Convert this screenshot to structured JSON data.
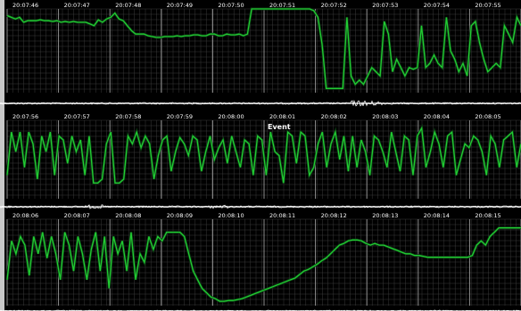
{
  "chart_data": {
    "type": "line",
    "title": "",
    "xlabel": "",
    "ylabel": "",
    "grid": true,
    "colors": {
      "background": "#000000",
      "grid": "#6a6a6a",
      "trace": "#22cc33",
      "trace_outline": "#0b3a12",
      "noise": "#ffffff",
      "label": "#ffffff"
    },
    "annotations": [
      {
        "text": "Event",
        "strip": 1,
        "time": "20:08:01"
      }
    ],
    "strips": [
      {
        "time_labels": [
          "20:07:46",
          "20:07:47",
          "20:07:48",
          "20:07:49",
          "20:07:50",
          "20:07:51",
          "20:07:52",
          "20:07:53",
          "20:07:54",
          "20:07:55"
        ],
        "series": [
          {
            "values": [
              92,
              90,
              88,
              90,
              84,
              86,
              86,
              86,
              87,
              86,
              86,
              85,
              86,
              84,
              85,
              84,
              85,
              84,
              84,
              84,
              82,
              80,
              87,
              84,
              88,
              90,
              95,
              88,
              86,
              80,
              74,
              70,
              70,
              70,
              68,
              67,
              66,
              66,
              67,
              67,
              67,
              68,
              67,
              68,
              68,
              69,
              69,
              68,
              68,
              70,
              70,
              68,
              68,
              70,
              69,
              69,
              70,
              68,
              70,
              100,
              100,
              100,
              100,
              100,
              100,
              100,
              100,
              100,
              100,
              100,
              100,
              100,
              100,
              100,
              98,
              90,
              58,
              5,
              5,
              5,
              5,
              5,
              90,
              20,
              10,
              15,
              10,
              20,
              30,
              25,
              20,
              85,
              70,
              25,
              40,
              30,
              20,
              30,
              28,
              30,
              80,
              30,
              35,
              45,
              35,
              30,
              90,
              50,
              40,
              25,
              35,
              20,
              80,
              85,
              60,
              40,
              25,
              30,
              35,
              30,
              80,
              70,
              60,
              90,
              80
            ]
          }
        ],
        "noise_level": 0.35,
        "noise_bursts": [
          {
            "at": 0.69,
            "amp": 3.0
          },
          {
            "at": 0.72,
            "amp": 2.5
          }
        ]
      },
      {
        "time_labels": [
          "20:07:56",
          "20:07:57",
          "20:07:58",
          "20:07:59",
          "20:08:00",
          "20:08:01",
          "20:08:02",
          "20:08:03",
          "20:08:04",
          "20:08:05"
        ],
        "series": [
          {
            "values": [
              30,
              85,
              60,
              85,
              40,
              85,
              70,
              25,
              80,
              60,
              85,
              30,
              80,
              75,
              45,
              80,
              60,
              75,
              30,
              80,
              20,
              20,
              25,
              70,
              85,
              20,
              20,
              25,
              80,
              70,
              85,
              65,
              80,
              70,
              25,
              55,
              75,
              80,
              35,
              60,
              78,
              70,
              55,
              80,
              75,
              35,
              60,
              80,
              50,
              65,
              75,
              45,
              80,
              60,
              40,
              75,
              70,
              30,
              80,
              75,
              30,
              85,
              60,
              55,
              20,
              85,
              80,
              45,
              85,
              80,
              30,
              40,
              70,
              85,
              40,
              70,
              85,
              50,
              80,
              35,
              80,
              40,
              75,
              60,
              30,
              80,
              75,
              60,
              40,
              85,
              60,
              35,
              80,
              75,
              30,
              80,
              90,
              40,
              60,
              85,
              70,
              40,
              80,
              85,
              30,
              50,
              70,
              65,
              80,
              75,
              60,
              30,
              80,
              70,
              40,
              75,
              80,
              85,
              40,
              70
            ]
          }
        ],
        "noise_level": 0.35,
        "noise_bursts": [
          {
            "at": 0.18,
            "amp": 2.0
          },
          {
            "at": 0.42,
            "amp": 1.8
          }
        ]
      },
      {
        "time_labels": [
          "20:08:06",
          "20:08:07",
          "20:08:08",
          "20:08:09",
          "20:08:10",
          "20:08:11",
          "20:08:12",
          "20:08:13",
          "20:08:14",
          "20:08:15"
        ],
        "series": [
          {
            "values": [
              30,
              75,
              60,
              80,
              70,
              35,
              80,
              60,
              85,
              55,
              80,
              60,
              30,
              85,
              70,
              40,
              80,
              60,
              30,
              65,
              85,
              40,
              80,
              20,
              80,
              60,
              75,
              40,
              85,
              30,
              60,
              50,
              80,
              65,
              80,
              75,
              85,
              85,
              85,
              85,
              80,
              60,
              40,
              30,
              20,
              15,
              10,
              8,
              5,
              5,
              6,
              6,
              7,
              8,
              10,
              12,
              14,
              16,
              18,
              20,
              22,
              24,
              26,
              28,
              30,
              32,
              36,
              40,
              42,
              45,
              48,
              52,
              55,
              60,
              65,
              70,
              72,
              75,
              76,
              76,
              75,
              72,
              70,
              72,
              70,
              70,
              68,
              66,
              64,
              62,
              60,
              60,
              58,
              58,
              57,
              56,
              56,
              56,
              56,
              56,
              56,
              56,
              56,
              56,
              56,
              58,
              70,
              75,
              70,
              80,
              85,
              90,
              90,
              90,
              90,
              90,
              90
            ]
          }
        ],
        "noise_level": 0.3,
        "noise_bursts": []
      }
    ]
  }
}
